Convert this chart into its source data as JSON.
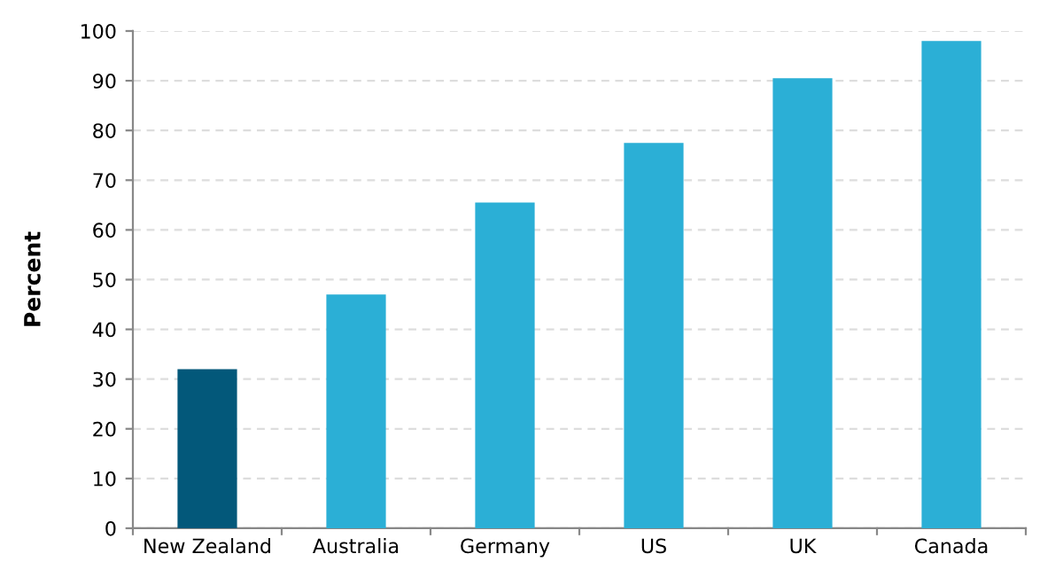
{
  "chart_data": {
    "type": "bar",
    "ylabel": "Percent",
    "categories": [
      "New Zealand",
      "Australia",
      "Germany",
      "US",
      "UK",
      "Canada"
    ],
    "values": [
      32,
      47,
      65.5,
      77.5,
      90.5,
      98
    ],
    "colors": [
      "#03587a",
      "#2bafd6",
      "#2bafd6",
      "#2bafd6",
      "#2bafd6",
      "#2bafd6"
    ],
    "ylim": [
      0,
      100
    ],
    "yticks": [
      0,
      10,
      20,
      30,
      40,
      50,
      60,
      70,
      80,
      90,
      100
    ],
    "grid": "y"
  }
}
